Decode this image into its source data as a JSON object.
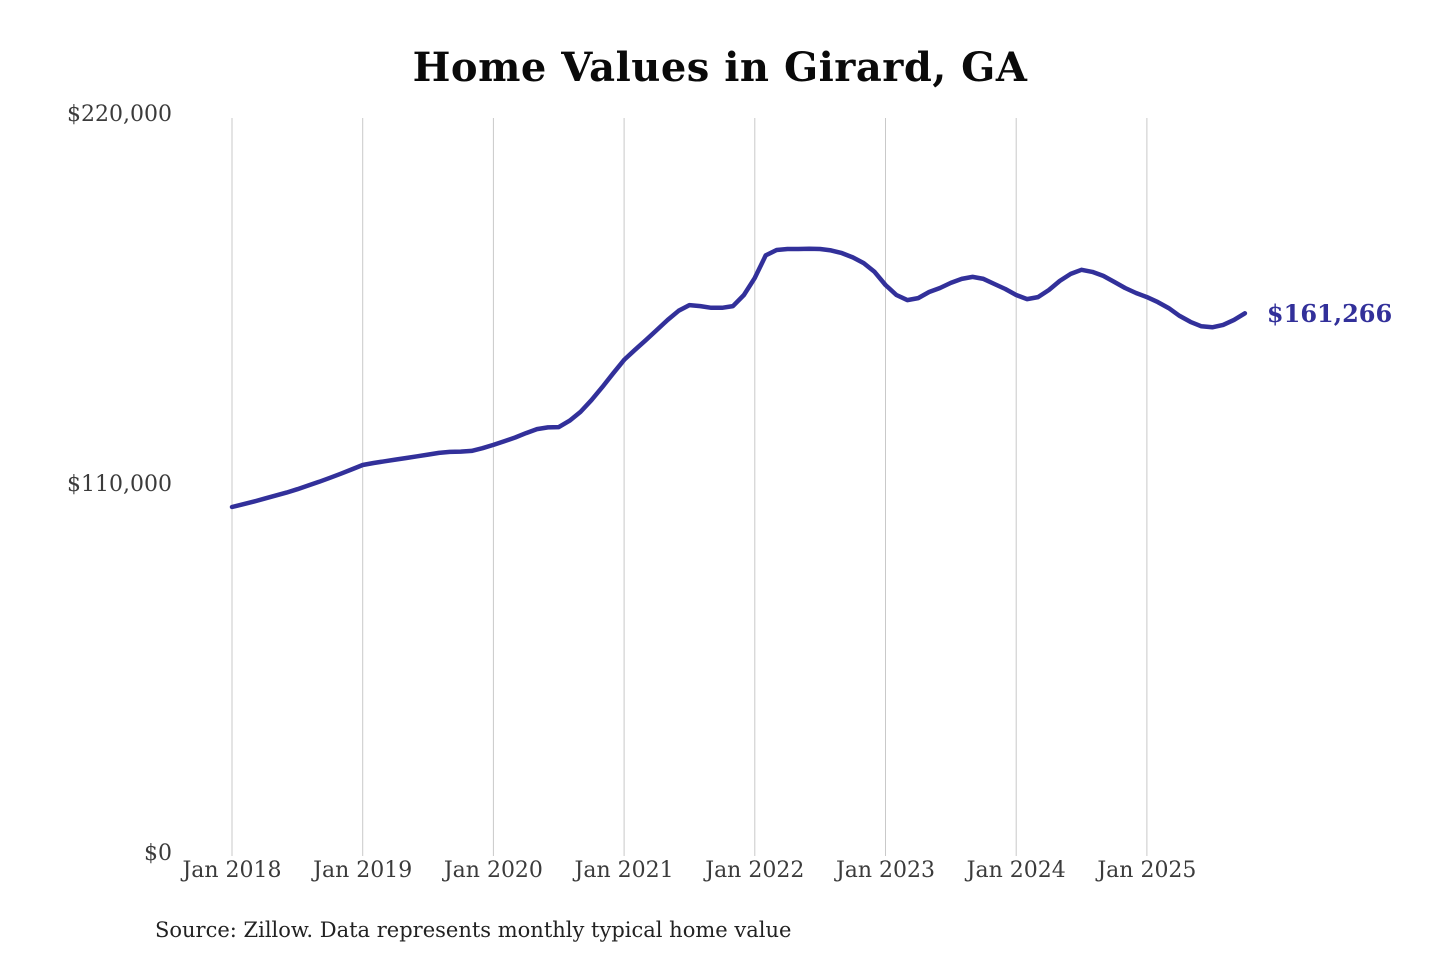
{
  "title": "Home Values in Girard, GA",
  "source_note": "Source: Zillow. Data represents monthly typical home value",
  "colors": {
    "line": "#32309a",
    "annotation_text": "#32309a",
    "grid": "#c9c9c9",
    "axis_text": "#3b3b3b",
    "title_text": "#0a0a0a"
  },
  "chart_data": {
    "type": "line",
    "title": "Home Values in Girard, GA",
    "xlabel": "",
    "ylabel": "",
    "ylim": [
      0,
      220000
    ],
    "grid": "vertical-only",
    "legend": "none",
    "x_ticks": [
      "Jan 2018",
      "Jan 2019",
      "Jan 2020",
      "Jan 2021",
      "Jan 2022",
      "Jan 2023",
      "Jan 2024",
      "Jan 2025"
    ],
    "y_ticks": [
      {
        "label": "$0",
        "value": 0
      },
      {
        "label": "$110,000",
        "value": 110000
      },
      {
        "label": "$220,000",
        "value": 220000
      }
    ],
    "end_label": "$161,266",
    "end_value": 161266,
    "series": [
      {
        "name": "Monthly typical home value",
        "months": [
          "2018-01",
          "2018-02",
          "2018-03",
          "2018-04",
          "2018-05",
          "2018-06",
          "2018-07",
          "2018-08",
          "2018-09",
          "2018-10",
          "2018-11",
          "2018-12",
          "2019-01",
          "2019-02",
          "2019-03",
          "2019-04",
          "2019-05",
          "2019-06",
          "2019-07",
          "2019-08",
          "2019-09",
          "2019-10",
          "2019-11",
          "2019-12",
          "2020-01",
          "2020-02",
          "2020-03",
          "2020-04",
          "2020-05",
          "2020-06",
          "2020-07",
          "2020-08",
          "2020-09",
          "2020-10",
          "2020-11",
          "2020-12",
          "2021-01",
          "2021-02",
          "2021-03",
          "2021-04",
          "2021-05",
          "2021-06",
          "2021-07",
          "2021-08",
          "2021-09",
          "2021-10",
          "2021-11",
          "2021-12",
          "2022-01",
          "2022-02",
          "2022-03",
          "2022-04",
          "2022-05",
          "2022-06",
          "2022-07",
          "2022-08",
          "2022-09",
          "2022-10",
          "2022-11",
          "2022-12",
          "2023-01",
          "2023-02",
          "2023-03",
          "2023-04",
          "2023-05",
          "2023-06",
          "2023-07",
          "2023-08",
          "2023-09",
          "2023-10",
          "2023-11",
          "2023-12",
          "2024-01",
          "2024-02",
          "2024-03",
          "2024-04",
          "2024-05",
          "2024-06",
          "2024-07",
          "2024-08",
          "2024-09",
          "2024-10",
          "2024-11",
          "2024-12",
          "2025-01",
          "2025-02",
          "2025-03",
          "2025-04",
          "2025-05",
          "2025-06",
          "2025-07",
          "2025-08",
          "2025-09",
          "2025-10"
        ],
        "values": [
          103600,
          104400,
          105200,
          106100,
          107000,
          107900,
          108900,
          110000,
          111100,
          112300,
          113500,
          114800,
          116100,
          116700,
          117200,
          117700,
          118200,
          118700,
          119200,
          119700,
          120000,
          120100,
          120300,
          121100,
          122100,
          123200,
          124300,
          125600,
          126800,
          127300,
          127400,
          129300,
          131900,
          135400,
          139300,
          143400,
          147400,
          150400,
          153300,
          156300,
          159300,
          162000,
          163700,
          163400,
          162900,
          162900,
          163400,
          166700,
          171800,
          178500,
          180100,
          180400,
          180400,
          180500,
          180400,
          180000,
          179200,
          177900,
          176200,
          173600,
          169700,
          166700,
          165200,
          165800,
          167600,
          168800,
          170300,
          171500,
          172100,
          171500,
          170000,
          168500,
          166700,
          165500,
          166100,
          168200,
          170900,
          173000,
          174200,
          173600,
          172400,
          170600,
          168800,
          167300,
          166100,
          164600,
          162800,
          160500,
          158700,
          157400,
          157100,
          157800,
          159300,
          161266
        ]
      }
    ]
  }
}
